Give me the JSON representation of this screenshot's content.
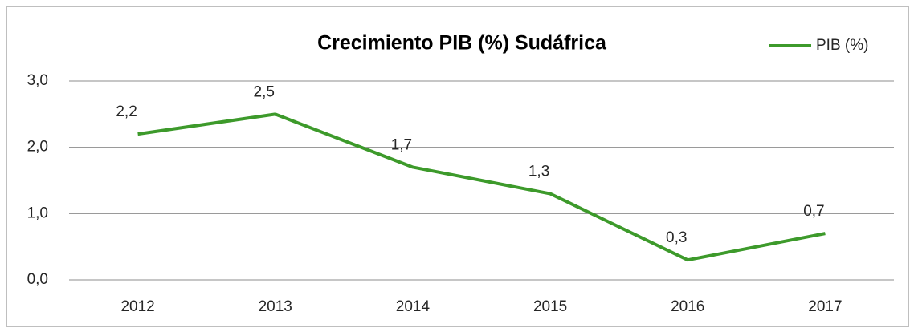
{
  "chart_data": {
    "type": "line",
    "title": "Crecimiento PIB (%) Sudáfrica",
    "categories": [
      "2012",
      "2013",
      "2014",
      "2015",
      "2016",
      "2017"
    ],
    "series": [
      {
        "name": "PIB (%)",
        "color": "#3d9a2b",
        "values": [
          2.2,
          2.5,
          1.7,
          1.3,
          0.3,
          0.7
        ],
        "value_labels": [
          "2,2",
          "2,5",
          "1,7",
          "1,3",
          "0,3",
          "0,7"
        ]
      }
    ],
    "ylim": [
      0,
      3
    ],
    "yticks": [
      {
        "value": 0,
        "label": "0,0"
      },
      {
        "value": 1,
        "label": "1,0"
      },
      {
        "value": 2,
        "label": "2,0"
      },
      {
        "value": 3,
        "label": "3,0"
      }
    ],
    "grid": true,
    "legend": "top-right"
  }
}
